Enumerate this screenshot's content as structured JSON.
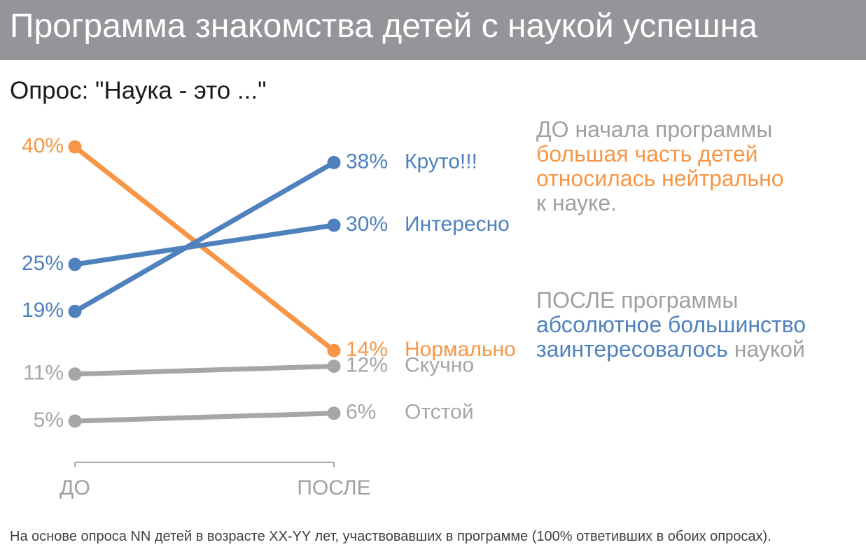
{
  "header": {
    "title": "Программа знакомства детей с наукой успешна"
  },
  "subtitle": "Опрос: \"Наука - это ...\"",
  "colors": {
    "orange": "#F79646",
    "blue": "#4F81BD",
    "gray": "#A6A6A6",
    "title_bg": "#939598",
    "note_gray": "#A0A0A0"
  },
  "chart_data": {
    "type": "line",
    "x": [
      "ДО",
      "ПОСЛЕ"
    ],
    "ylim": [
      0,
      40
    ],
    "grid": false,
    "series": [
      {
        "name": "Круто!!!",
        "values": [
          19,
          38
        ],
        "labels": [
          "19%",
          "38%"
        ],
        "color": "#4F81BD"
      },
      {
        "name": "Интересно",
        "values": [
          25,
          30
        ],
        "labels": [
          "25%",
          "30%"
        ],
        "color": "#4F81BD"
      },
      {
        "name": "Нормально",
        "values": [
          40,
          14
        ],
        "labels": [
          "40%",
          "14%"
        ],
        "color": "#F79646"
      },
      {
        "name": "Скучно",
        "values": [
          11,
          12
        ],
        "labels": [
          "11%",
          "12%"
        ],
        "color": "#A6A6A6"
      },
      {
        "name": "Отстой",
        "values": [
          5,
          6
        ],
        "labels": [
          "5%",
          "6%"
        ],
        "color": "#A6A6A6"
      }
    ]
  },
  "notes": {
    "before": {
      "line1": "ДО начала программы",
      "line2": "большая часть детей",
      "line3": "относилась нейтрально",
      "line4": "к науке."
    },
    "after": {
      "line1": "ПОСЛЕ программы",
      "line2": "абсолютное большинство",
      "line3a": "заинтересовалось",
      "line3b": " наукой"
    }
  },
  "footnote": "На основе опроса NN детей в возрасте XX-YY лет, участвовавших в программе (100% ответивших в обоих опросах)."
}
